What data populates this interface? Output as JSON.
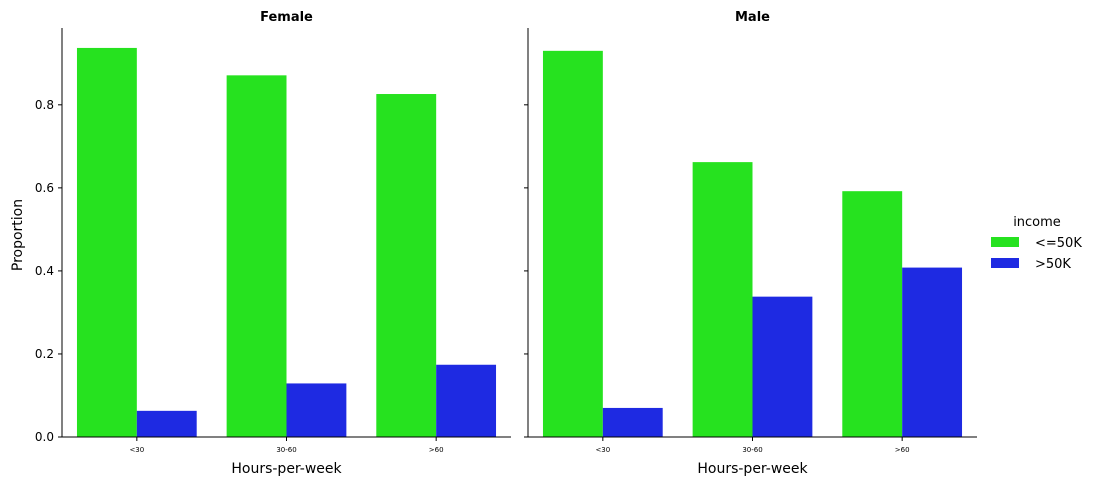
{
  "chart_data": {
    "type": "bar",
    "ylabel": "Proportion",
    "ylim": [
      0,
      0.985
    ],
    "yticks": [
      "0.0",
      "0.2",
      "0.4",
      "0.6",
      "0.8"
    ],
    "ytick_values": [
      0,
      0.2,
      0.4,
      0.6,
      0.8
    ],
    "legend": {
      "title": "income",
      "placement": "right",
      "entries": [
        {
          "label": "<=50K",
          "color": "#26e21f"
        },
        {
          "label": ">50K",
          "color": "#1e2ae2"
        }
      ]
    },
    "panels": [
      {
        "title": "Female",
        "xlabel": "Hours-per-week",
        "categories": [
          "<30",
          "30-60",
          ">60"
        ],
        "series": [
          {
            "name": "<=50K",
            "values": [
              0.937,
              0.871,
              0.826
            ]
          },
          {
            "name": ">50K",
            "values": [
              0.063,
              0.129,
              0.174
            ]
          }
        ]
      },
      {
        "title": "Male",
        "xlabel": "Hours-per-week",
        "categories": [
          "<30",
          "30-60",
          ">60"
        ],
        "series": [
          {
            "name": "<=50K",
            "values": [
              0.93,
              0.662,
              0.592
            ]
          },
          {
            "name": ">50K",
            "values": [
              0.07,
              0.338,
              0.408
            ]
          }
        ]
      }
    ]
  }
}
